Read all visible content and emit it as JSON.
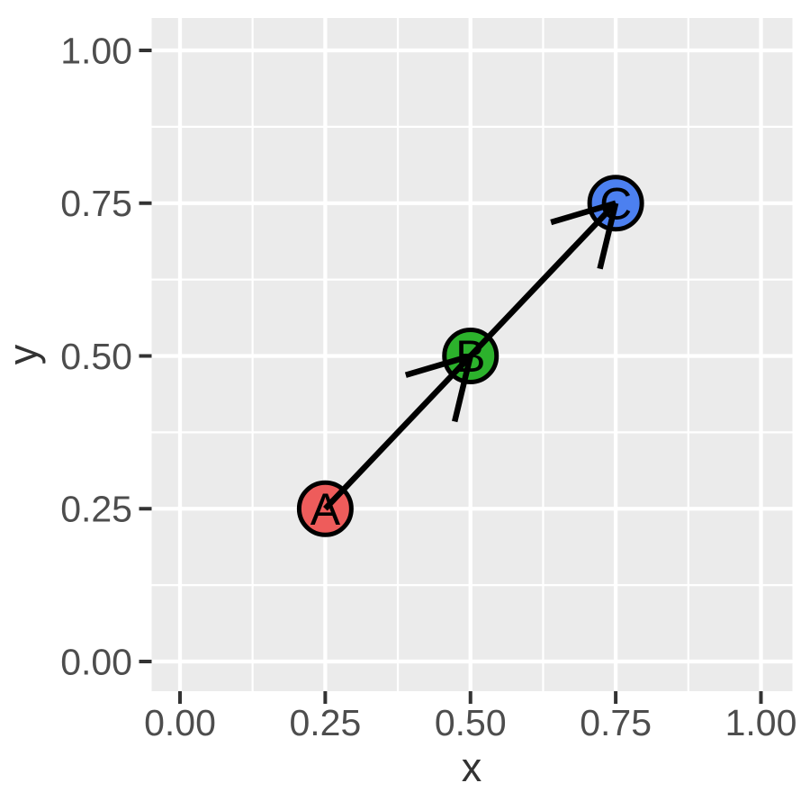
{
  "chart_data": {
    "type": "scatter",
    "title": "",
    "xlabel": "x",
    "ylabel": "y",
    "xlim": [
      -0.05,
      1.05
    ],
    "ylim": [
      -0.05,
      1.05
    ],
    "grid": "on",
    "legend": "none",
    "x_ticks": {
      "values": [
        0.0,
        0.25,
        0.5,
        0.75,
        1.0
      ],
      "labels": [
        "0.00",
        "0.25",
        "0.50",
        "0.75",
        "1.00"
      ]
    },
    "y_ticks": {
      "values": [
        0.0,
        0.25,
        0.5,
        0.75,
        1.0
      ],
      "labels": [
        "0.00",
        "0.25",
        "0.50",
        "0.75",
        "1.00"
      ]
    },
    "x_minor_ticks": [
      0.125,
      0.375,
      0.625,
      0.875
    ],
    "y_minor_ticks": [
      0.125,
      0.375,
      0.625,
      0.875
    ],
    "points": [
      {
        "label": "A",
        "x": 0.25,
        "y": 0.25,
        "fill": "#EE5C5B"
      },
      {
        "label": "B",
        "x": 0.5,
        "y": 0.5,
        "fill": "#2CB22C"
      },
      {
        "label": "C",
        "x": 0.75,
        "y": 0.75,
        "fill": "#4C80F0"
      }
    ],
    "arrows": [
      {
        "from": "A",
        "to": "B"
      },
      {
        "from": "B",
        "to": "C"
      }
    ],
    "style": {
      "figure_background": "#FFFFFF",
      "panel_background": "#EBEBEB",
      "grid_color": "#FFFFFF",
      "point_outline_color": "#000000",
      "point_label_color": "#000000",
      "arrow_color": "#000000",
      "axis_text_color": "#4D4D4D",
      "axis_title_color": "#333333",
      "tick_mark_color": "#333333"
    }
  }
}
